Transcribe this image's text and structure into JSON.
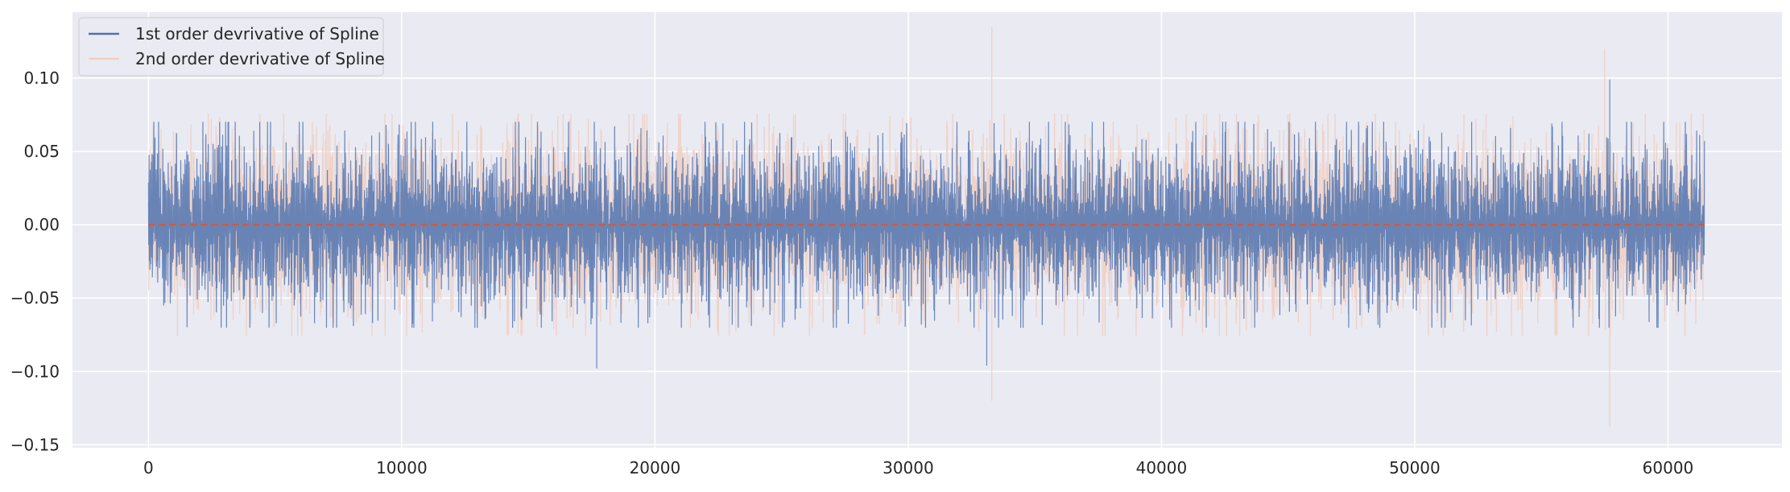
{
  "chart_data": {
    "type": "line",
    "title": "",
    "xlabel": "",
    "ylabel": "",
    "xlim": [
      -3000,
      64500
    ],
    "ylim": [
      -0.152,
      0.145
    ],
    "xticks": [
      0,
      10000,
      20000,
      30000,
      40000,
      50000,
      60000
    ],
    "yticks": [
      -0.15,
      -0.1,
      -0.05,
      0.0,
      0.05,
      0.1
    ],
    "xtick_labels": [
      "0",
      "10000",
      "20000",
      "30000",
      "40000",
      "50000",
      "60000"
    ],
    "ytick_labels": [
      "−0.15",
      "−0.10",
      "−0.05",
      "0.00",
      "0.05",
      "0.10"
    ],
    "grid": true,
    "legend_position": "top-left",
    "n_points": 61440,
    "x_range": [
      0,
      61440
    ],
    "background_color": "#eaeaf2",
    "series": [
      {
        "name": "2nd order devrivative of Spline",
        "color": "#f0d0c4",
        "std": 0.026,
        "typical_envelope": [
          -0.06,
          0.07
        ],
        "extremes": [
          {
            "x": 33300,
            "y": 0.135
          },
          {
            "x": 33300,
            "y": -0.12
          },
          {
            "x": 57700,
            "y": -0.138
          },
          {
            "x": 57500,
            "y": 0.12
          }
        ]
      },
      {
        "name": "1st order devrivative of Spline",
        "color": "#4c72b0",
        "std": 0.024,
        "typical_envelope": [
          -0.06,
          0.065
        ],
        "extremes": [
          {
            "x": 57700,
            "y": 0.099
          },
          {
            "x": 17700,
            "y": -0.098
          },
          {
            "x": 33100,
            "y": -0.096
          }
        ]
      }
    ],
    "reference_line": {
      "y": 0.0,
      "color": "#dd5533",
      "style": "dashed"
    }
  }
}
